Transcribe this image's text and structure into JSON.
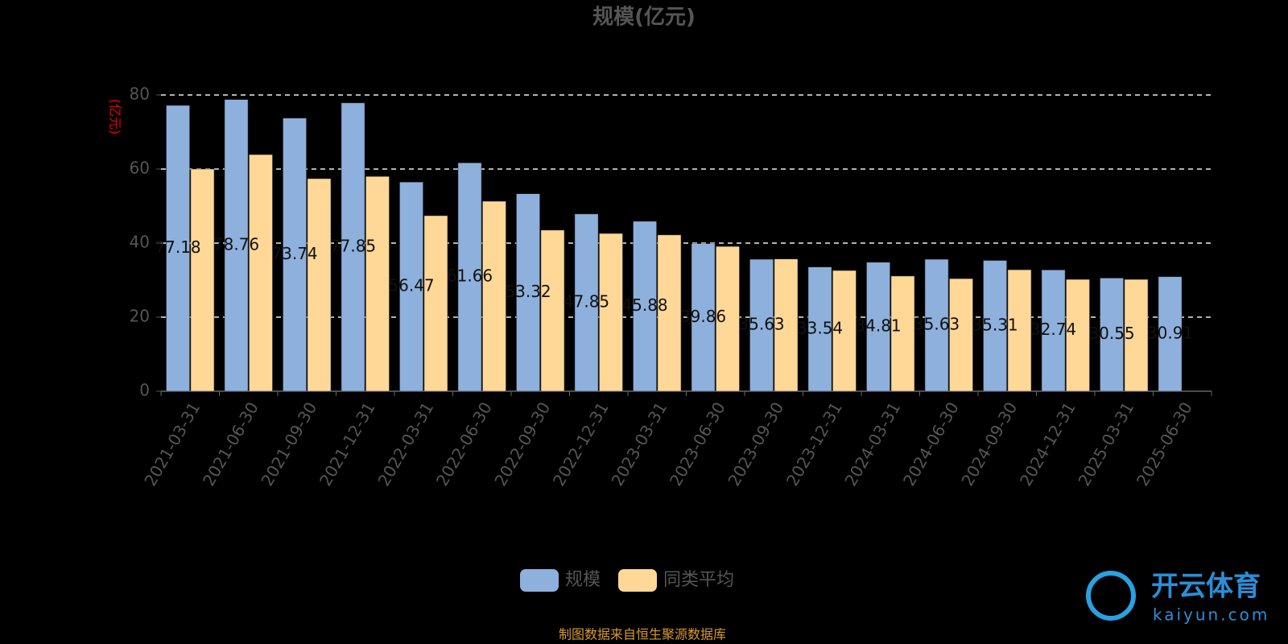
{
  "chart_data": {
    "type": "bar",
    "title": "规模(亿元)",
    "y_label": "(亿元)",
    "categories": [
      "2021-03-31",
      "2021-06-30",
      "2021-09-30",
      "2021-12-31",
      "2022-03-31",
      "2022-06-30",
      "2022-09-30",
      "2022-12-31",
      "2023-03-31",
      "2023-06-30",
      "2023-09-30",
      "2023-12-31",
      "2024-03-31",
      "2024-06-30",
      "2024-09-30",
      "2024-12-31",
      "2025-03-31",
      "2025-06-30"
    ],
    "series": [
      {
        "name": "规模",
        "color": "#8eb0dc",
        "values": [
          77.18,
          78.76,
          73.74,
          77.85,
          56.47,
          61.66,
          53.32,
          47.85,
          45.88,
          39.86,
          35.63,
          33.54,
          34.81,
          35.63,
          35.31,
          32.74,
          30.55,
          30.91
        ],
        "show_labels": true
      },
      {
        "name": "同类平均",
        "color": "#ffd898",
        "values": [
          60.0,
          63.9,
          57.4,
          58.0,
          47.4,
          51.3,
          43.5,
          42.6,
          42.2,
          39.1,
          35.7,
          32.6,
          31.1,
          30.4,
          32.8,
          30.2,
          30.2,
          null
        ],
        "show_labels": false
      }
    ],
    "ylim": [
      0,
      80
    ],
    "yticks": [
      0,
      20,
      40,
      60,
      80
    ],
    "grid": true,
    "legend": "bottom",
    "source": "制图数据来自恒生聚源数据库",
    "watermark": {
      "brand": "开云体育",
      "site": "kaiyun.com"
    }
  }
}
